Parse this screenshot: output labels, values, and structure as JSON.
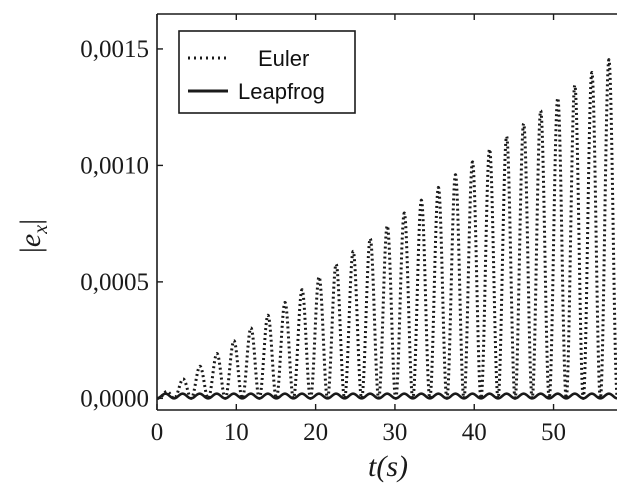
{
  "chart_data": {
    "type": "line",
    "title": "",
    "xlabel": "t(s)",
    "ylabel": "|e_x|",
    "xlim": [
      0,
      58
    ],
    "ylim": [
      -5e-05,
      0.00165
    ],
    "x_ticks": [
      0,
      10,
      20,
      30,
      40,
      50
    ],
    "x_tick_labels": [
      "0",
      "10",
      "20",
      "30",
      "40",
      "50"
    ],
    "y_ticks": [
      0,
      0.0005,
      0.001,
      0.0015
    ],
    "y_tick_labels": [
      "0,0000",
      "0,0005",
      "0,0010",
      "0,0015"
    ],
    "grid": false,
    "legend_position": "top-left",
    "series": [
      {
        "name": "Euler",
        "style": "dotted",
        "color": "#1a1a1a",
        "description": "oscillating error with linearly growing envelope",
        "period_s": 2.15,
        "envelope": [
          [
            0,
            0
          ],
          [
            58,
            0.00148
          ]
        ]
      },
      {
        "name": "Leapfrog",
        "style": "solid",
        "color": "#1a1a1a",
        "description": "small bounded oscillation near zero",
        "period_s": 2.15,
        "envelope": [
          [
            0,
            2e-05
          ],
          [
            58,
            2e-05
          ]
        ]
      }
    ]
  }
}
